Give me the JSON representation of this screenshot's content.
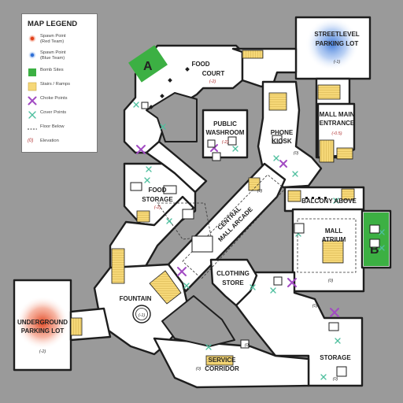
{
  "legend": {
    "title": "MAP LEGEND",
    "items": [
      {
        "label": "Spawn Point\n(Red Team)",
        "icon": "red-spawn-icon",
        "color": "#e0401a"
      },
      {
        "label": "Spawn Point\n(Blue Team)",
        "icon": "blue-spawn-icon",
        "color": "#2f6fd6"
      },
      {
        "label": "Bomb Sites",
        "icon": "bomb-site-icon",
        "color": "#3cb043"
      },
      {
        "label": "Stairs / Ramps",
        "icon": "stairs-icon",
        "color": "#f6d878"
      },
      {
        "label": "Choke Points",
        "icon": "choke-point-icon",
        "color": "#b05cc8"
      },
      {
        "label": "Cover Points",
        "icon": "cover-point-icon",
        "color": "#5cc4a8"
      },
      {
        "label": "Floor Below",
        "icon": "floor-below-icon",
        "color": "#444444"
      },
      {
        "label": "Elevation",
        "icon": "elevation-icon",
        "color": "#b03030",
        "symbol": "(0)"
      }
    ]
  },
  "areas": {
    "food_court": {
      "name": "FOOD\nCOURT",
      "elevation": "(-2)"
    },
    "streetlevel_parking": {
      "name": "STREETLEVEL\nPARKING LOT",
      "elevation": "(-1)"
    },
    "public_washroom": {
      "name": "PUBLIC\nWASHROOM",
      "elevation": "(-2)"
    },
    "phone_kiosk": {
      "name": "PHONE\nKIOSK",
      "elevation": "(0)"
    },
    "mall_main_entrance": {
      "name": "MALL MAIN\nENTRANCE",
      "elevation": "(-0.5)"
    },
    "food_storage": {
      "name": "FOOD\nSTORAGE",
      "elevation": "(-2)"
    },
    "central_arcade": {
      "name": "CENTRAL\nMALL ARCADE",
      "elevation": "(0)"
    },
    "balcony": {
      "name": "BALCONY ABOVE"
    },
    "mall_atrium": {
      "name": "MALL\nATRIUM",
      "elevation": "(0)"
    },
    "clothing_store": {
      "name": "CLOTHING\nSTORE"
    },
    "fountain": {
      "name": "FOUNTAIN",
      "elevation": "(-1)"
    },
    "underground_parking": {
      "name": "UNDERGROUND\nPARKING LOT",
      "elevation": "(-2)"
    },
    "service_corridor": {
      "name": "SERVICE\nCORRIDOR",
      "elevation": "(0)"
    },
    "storage": {
      "name": "STORAGE",
      "elevation": "(0)"
    },
    "lower_elevation_marker": "(0)",
    "corridor_elevation_marker": "(0)"
  },
  "bomb_sites": {
    "a": "A",
    "b": "B"
  }
}
